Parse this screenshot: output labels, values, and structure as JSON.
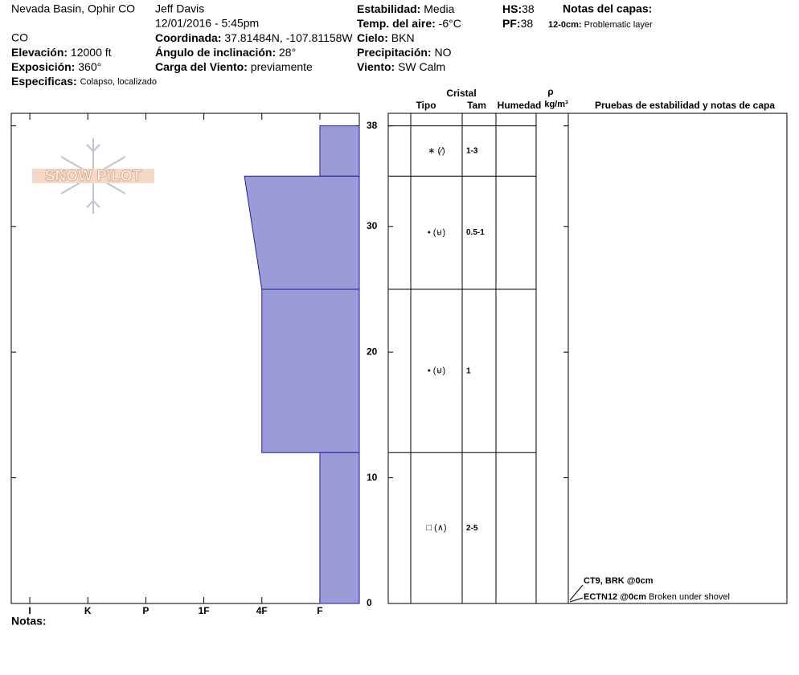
{
  "header": {
    "location": "Nevada Basin, Ophir CO",
    "state": "CO",
    "observer": "Jeff Davis",
    "datetime": "12/01/2016 - 5:45pm",
    "elevation": {
      "label": "Elevación:",
      "value": "12000 ft"
    },
    "aspect": {
      "label": "Exposición:",
      "value": "360°"
    },
    "specifics": {
      "label": "Especificas:",
      "value": "Colapso, localizado"
    },
    "coordinates": {
      "label": "Coordinada:",
      "value": "37.81484N, -107.81158W"
    },
    "slope": {
      "label": "Ángulo de inclinación:",
      "value": "28°"
    },
    "wind_loading": {
      "label": "Carga del Viento:",
      "value": "previamente"
    },
    "stability": {
      "label": "Estabilidad:",
      "value": "Media"
    },
    "air_temp": {
      "label": "Temp. del aire:",
      "value": "-6°C"
    },
    "sky": {
      "label": "Cielo:",
      "value": "BKN"
    },
    "precipitation": {
      "label": "Precipitación:",
      "value": "NO"
    },
    "wind": {
      "label": "Viento:",
      "value": "SW Calm"
    },
    "hs": {
      "label": "HS:",
      "value": "38"
    },
    "pf": {
      "label": "PF:",
      "value": "38"
    },
    "layer_notes": {
      "title": "Notas del capas:",
      "range": "12-0cm:",
      "note": "Problematic layer"
    },
    "logo": "SNOW PILOT"
  },
  "chart_data": {
    "type": "profile",
    "xlim": [
      6.32,
      0.32
    ],
    "ylim": [
      0,
      39
    ],
    "xticks": [
      {
        "value": 6,
        "label": "I"
      },
      {
        "value": 5,
        "label": "K"
      },
      {
        "value": 4,
        "label": "P"
      },
      {
        "value": 3,
        "label": "1F"
      },
      {
        "value": 2,
        "label": "4F"
      },
      {
        "value": 1,
        "label": "F"
      }
    ],
    "yticks": [
      0,
      10,
      20,
      30,
      38
    ],
    "color": "#9b9bd7",
    "layers": [
      {
        "top": 38,
        "bottom": 34,
        "hardness_top": 1,
        "hardness_bottom": 1
      },
      {
        "top": 34,
        "bottom": 25,
        "hardness_top": 2.3,
        "hardness_bottom": 2
      },
      {
        "top": 25,
        "bottom": 12,
        "hardness_top": 2,
        "hardness_bottom": 2
      },
      {
        "top": 12,
        "bottom": 0,
        "hardness_top": 1,
        "hardness_bottom": 1
      }
    ]
  },
  "layer_table": {
    "headers": {
      "crystal": "Cristal",
      "type": "Tipo",
      "size": "Tam",
      "moisture": "Humedad",
      "density": "ρ",
      "density_unit": "kg/m³",
      "tests": "Pruebas de estabilidad y notas de capa"
    },
    "rows": [
      {
        "type": "∗ (⁄)",
        "size": "1-3"
      },
      {
        "type": "• (⊌)",
        "size": "0.5-1"
      },
      {
        "type": "• (⊌)",
        "size": "1"
      },
      {
        "type": "□ (∧)",
        "size": "2-5"
      }
    ],
    "tests": [
      {
        "result": "CT9, BRK @0cm"
      },
      {
        "result": "ECTN12 @0cm",
        "note": "Broken under shovel"
      }
    ]
  },
  "notes": {
    "label": "Notas:"
  }
}
